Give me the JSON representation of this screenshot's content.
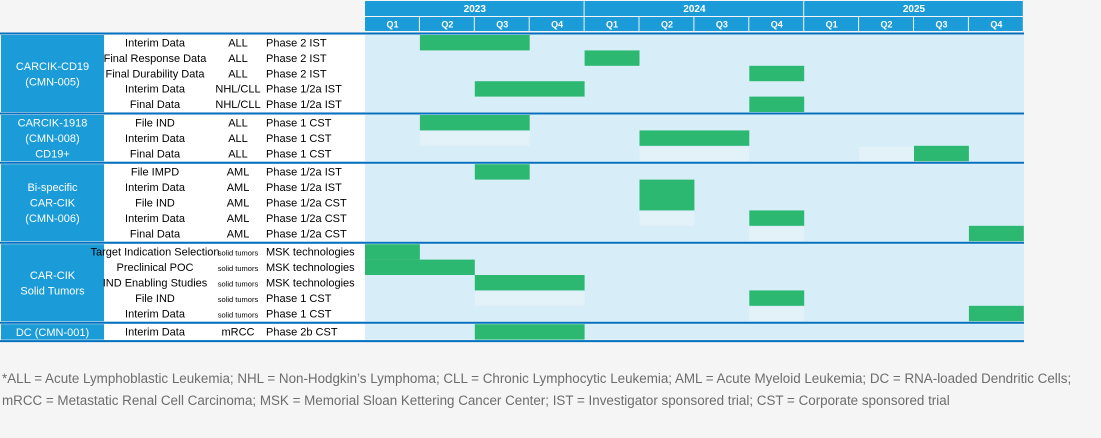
{
  "chart_data": {
    "type": "gantt",
    "years": [
      {
        "label": "2023",
        "quarters": [
          "Q1",
          "Q2",
          "Q3",
          "Q4"
        ]
      },
      {
        "label": "2024",
        "quarters": [
          "Q1",
          "Q2",
          "Q3",
          "Q4"
        ]
      },
      {
        "label": "2025",
        "quarters": [
          "Q1",
          "Q2",
          "Q3",
          "Q4"
        ]
      }
    ],
    "colors": {
      "header_bg": "#1b9bd7",
      "group_bg": "#cfe9f6",
      "row_bg": "#d7eef8",
      "bar": "#2db872",
      "ghost": "#e3f1f8",
      "label_bg": "#ffffff",
      "separator": "#0070c0",
      "text": "#000000",
      "group_text": "#ffffff"
    },
    "groups": [
      {
        "name_lines": [
          "CARCIK-CD19",
          "(CMN-005)"
        ],
        "rows": [
          {
            "milestone": "Interim Data",
            "indication": "ALL",
            "phase": "Phase 2 IST",
            "bars": [
              [
                1,
                3
              ]
            ]
          },
          {
            "milestone": "Final Response Data",
            "indication": "ALL",
            "phase": "Phase 2 IST",
            "bars": [
              [
                4,
                5
              ]
            ]
          },
          {
            "milestone": "Final Durability Data",
            "indication": "ALL",
            "phase": "Phase 2 IST",
            "bars": [
              [
                7,
                8
              ]
            ]
          },
          {
            "milestone": "Interim Data",
            "indication": "NHL/CLL",
            "phase": "Phase 1/2a IST",
            "bars": [
              [
                2,
                4
              ]
            ]
          },
          {
            "milestone": "Final Data",
            "indication": "NHL/CLL",
            "phase": "Phase 1/2a IST",
            "bars": [
              [
                7,
                8
              ]
            ]
          }
        ]
      },
      {
        "name_lines": [
          "CARCIK-1918",
          "(CMN-008)",
          "CD19+"
        ],
        "rows": [
          {
            "milestone": "File IND",
            "indication": "ALL",
            "phase": "Phase 1 CST",
            "bars": [
              [
                1,
                3
              ]
            ]
          },
          {
            "milestone": "Interim Data",
            "indication": "ALL",
            "phase": "Phase 1 CST",
            "bars": [
              [
                5,
                7
              ]
            ],
            "ghosts": [
              [
                1,
                3
              ]
            ]
          },
          {
            "milestone": "Final Data",
            "indication": "ALL",
            "phase": "Phase 1 CST",
            "bars": [
              [
                10,
                11
              ]
            ],
            "ghosts": [
              [
                5,
                7
              ],
              [
                9,
                10
              ]
            ]
          }
        ]
      },
      {
        "name_lines": [
          "Bi-specific",
          "CAR-CIK",
          "(CMN-006)"
        ],
        "rows": [
          {
            "milestone": "File IMPD",
            "indication": "AML",
            "phase": "Phase 1/2a IST",
            "bars": [
              [
                2,
                3
              ]
            ]
          },
          {
            "milestone": "Interim Data",
            "indication": "AML",
            "phase": "Phase 1/2a IST",
            "bars": [
              [
                5,
                6
              ]
            ]
          },
          {
            "milestone": "File IND",
            "indication": "AML",
            "phase": "Phase 1/2a CST",
            "bars": [
              [
                5,
                6
              ]
            ]
          },
          {
            "milestone": "Interim Data",
            "indication": "AML",
            "phase": "Phase 1/2a CST",
            "bars": [
              [
                7,
                8
              ]
            ],
            "ghosts": [
              [
                5,
                6
              ]
            ]
          },
          {
            "milestone": "Final Data",
            "indication": "AML",
            "phase": "Phase 1/2a CST",
            "bars": [
              [
                11,
                12
              ]
            ],
            "ghosts": [
              [
                7,
                8
              ]
            ]
          }
        ]
      },
      {
        "name_lines": [
          "CAR-CIK",
          "Solid Tumors"
        ],
        "rows": [
          {
            "milestone": "Target Indication Selection",
            "indication": "solid tumors",
            "phase": "MSK technologies",
            "bars": [
              [
                0,
                1
              ]
            ]
          },
          {
            "milestone": "Preclinical POC",
            "indication": "solid tumors",
            "phase": "MSK technologies",
            "bars": [
              [
                0,
                2
              ]
            ]
          },
          {
            "milestone": "IND Enabling Studies",
            "indication": "solid tumors",
            "phase": "MSK technologies",
            "bars": [
              [
                2,
                4
              ]
            ]
          },
          {
            "milestone": "File IND",
            "indication": "solid tumors",
            "phase": "Phase 1 CST",
            "bars": [
              [
                7,
                8
              ]
            ],
            "ghosts": [
              [
                2,
                4
              ]
            ]
          },
          {
            "milestone": "Interim Data",
            "indication": "solid tumors",
            "phase": "Phase 1 CST",
            "bars": [
              [
                11,
                12
              ]
            ],
            "ghosts": [
              [
                7,
                8
              ]
            ]
          }
        ]
      },
      {
        "name_lines": [
          "DC (CMN-001)"
        ],
        "rows": [
          {
            "milestone": "Interim Data",
            "indication": "mRCC",
            "phase": "Phase 2b CST",
            "bars": [
              [
                2,
                4
              ]
            ]
          }
        ]
      }
    ]
  },
  "footnote": "*ALL = Acute Lymphoblastic Leukemia; NHL = Non-Hodgkin’s Lymphoma; CLL = Chronic Lymphocytic Leukemia; AML = Acute Myeloid Leukemia; DC = RNA-loaded Dendritic Cells; mRCC = Metastatic Renal Cell Carcinoma; MSK = Memorial Sloan Kettering Cancer Center; IST = Investigator sponsored trial; CST = Corporate sponsored trial"
}
